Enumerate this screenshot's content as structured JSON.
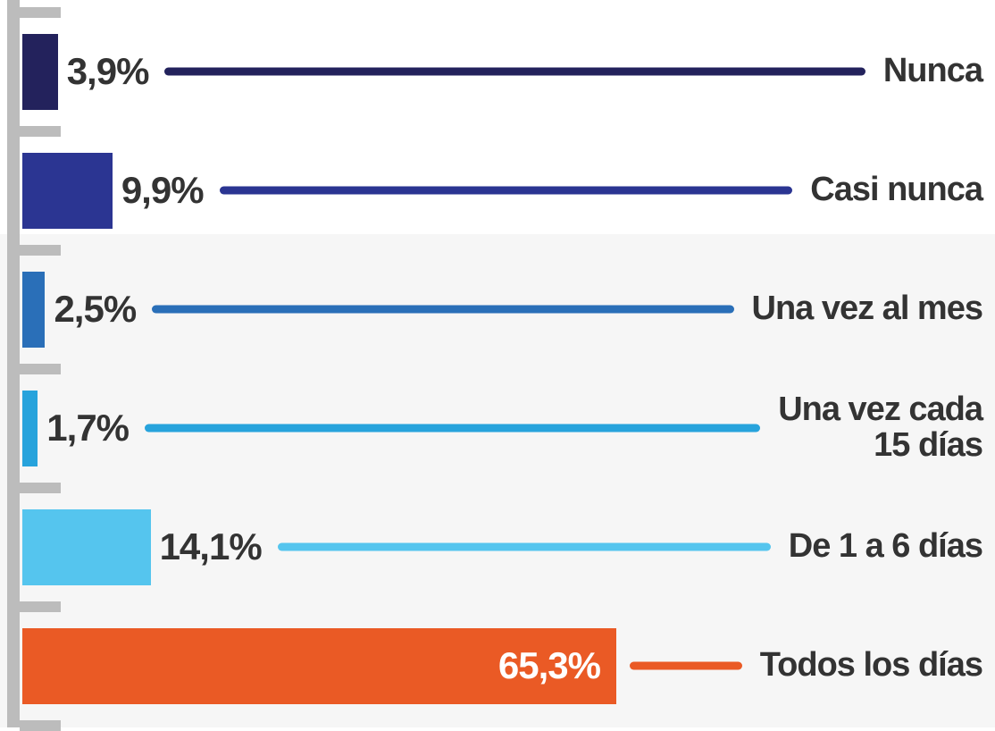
{
  "chart_data": {
    "type": "bar",
    "categories": [
      "Nunca",
      "Casi nunca",
      "Una vez al mes",
      "Una vez cada\n15 días",
      "De 1 a 6 días",
      "Todos los días"
    ],
    "values": [
      3.9,
      9.9,
      2.5,
      1.7,
      14.1,
      65.3
    ],
    "value_labels": [
      "3,9%",
      "9,9%",
      "2,5%",
      "1,7%",
      "14,1%",
      "65,3%"
    ],
    "colors": [
      "#23225c",
      "#2b3592",
      "#2a6fb8",
      "#27a3dc",
      "#55c5ee",
      "#ea5a25"
    ]
  }
}
